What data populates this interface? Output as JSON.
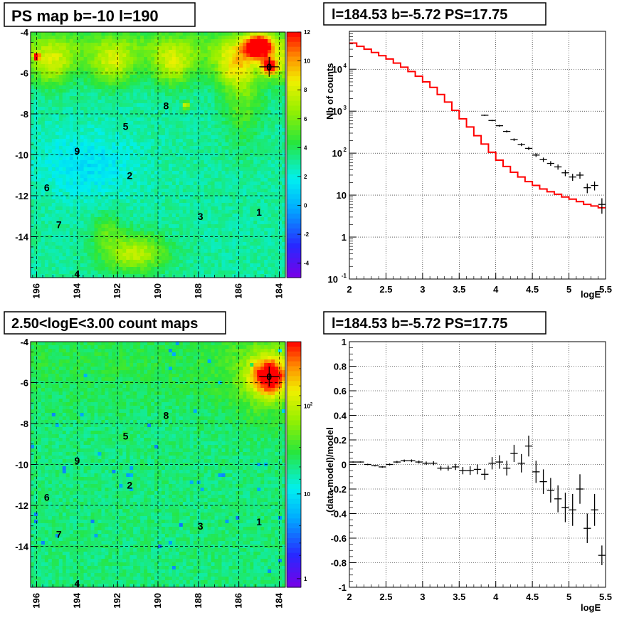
{
  "chart_data": [
    {
      "type": "heatmap",
      "title": "PS map b=-10 l=190",
      "x_ticks": [
        "196",
        "194",
        "192",
        "190",
        "188",
        "186",
        "184"
      ],
      "y_ticks": [
        "-4",
        "-6",
        "-8",
        "-10",
        "-12",
        "-14"
      ],
      "xlim": [
        196.3,
        183.7
      ],
      "ylim": [
        -16,
        -4
      ],
      "grid": true,
      "colorbar": {
        "ticks": [
          "12",
          "10",
          "8",
          "6",
          "4",
          "2",
          "0",
          "-2",
          "-4"
        ],
        "range": [
          -5,
          12
        ],
        "scale": "linear"
      },
      "sources": [
        {
          "id": "0",
          "l": 184.5,
          "b": -5.7
        },
        {
          "id": "1",
          "l": 185,
          "b": -12.8
        },
        {
          "id": "2",
          "l": 191.4,
          "b": -11
        },
        {
          "id": "3",
          "l": 187.9,
          "b": -13
        },
        {
          "id": "4",
          "l": 194,
          "b": -15.8
        },
        {
          "id": "5",
          "l": 191.6,
          "b": -8.6
        },
        {
          "id": "6",
          "l": 195.5,
          "b": -11.6
        },
        {
          "id": "7",
          "l": 194.9,
          "b": -13.4
        },
        {
          "id": "8",
          "l": 189.6,
          "b": -7.6
        },
        {
          "id": "9",
          "l": 194,
          "b": -9.8
        }
      ]
    },
    {
      "type": "line",
      "title": "l=184.53 b=-5.72 PS=17.75",
      "xlabel": "logE",
      "ylabel": "Nb of counts",
      "xlim": [
        2,
        5.5
      ],
      "ylim": [
        0.1,
        80000
      ],
      "yscale": "log",
      "x_ticks": [
        "2",
        "2.5",
        "3",
        "3.5",
        "4",
        "4.5",
        "5",
        "5.5"
      ],
      "y_ticks": [
        {
          "base": "10",
          "exp": "-1",
          "v": 0.1
        },
        {
          "base": "1",
          "exp": "",
          "v": 1
        },
        {
          "base": "10",
          "exp": "",
          "v": 10
        },
        {
          "base": "10",
          "exp": "2",
          "v": 100
        },
        {
          "base": "10",
          "exp": "3",
          "v": 1000
        },
        {
          "base": "10",
          "exp": "4",
          "v": 10000
        }
      ],
      "grid": true,
      "series": [
        {
          "kind": "model-step",
          "color": "#ff0000",
          "x": [
            2.05,
            2.15,
            2.25,
            2.35,
            2.45,
            2.55,
            2.65,
            2.75,
            2.85,
            2.95,
            3.05,
            3.15,
            3.25,
            3.35,
            3.45,
            3.55,
            3.65,
            3.75,
            3.85,
            3.95,
            4.05,
            4.15,
            4.25,
            4.35,
            4.45,
            4.55,
            4.65,
            4.75,
            4.85,
            4.95,
            5.05,
            5.15,
            5.25,
            5.35,
            5.45
          ],
          "values": [
            42000,
            35000,
            30000,
            25000,
            21000,
            17500,
            14000,
            11200,
            8800,
            6800,
            5000,
            3700,
            2500,
            1650,
            1050,
            660,
            420,
            260,
            165,
            105,
            68,
            48,
            35,
            27,
            21,
            17,
            14,
            12,
            10.5,
            9,
            8,
            7,
            6,
            5.5,
            5
          ]
        },
        {
          "kind": "data-points",
          "color": "#000000",
          "x": [
            3.85,
            3.95,
            4.05,
            4.15,
            4.25,
            4.35,
            4.45,
            4.55,
            4.65,
            4.75,
            4.85,
            4.95,
            5.05,
            5.15,
            5.25,
            5.35,
            5.45
          ],
          "values": [
            800,
            600,
            450,
            330,
            210,
            160,
            130,
            90,
            70,
            57,
            47,
            34,
            27,
            30,
            15,
            17,
            6
          ],
          "yerr_frac": [
            0.04,
            0.04,
            0.05,
            0.06,
            0.07,
            0.08,
            0.09,
            0.1,
            0.12,
            0.13,
            0.14,
            0.17,
            0.19,
            0.18,
            0.26,
            0.24,
            0.4
          ]
        }
      ]
    },
    {
      "type": "heatmap",
      "title": "2.50<logE<3.00 count maps",
      "x_ticks": [
        "196",
        "194",
        "192",
        "190",
        "188",
        "186",
        "184"
      ],
      "y_ticks": [
        "-4",
        "-6",
        "-8",
        "-10",
        "-12",
        "-14"
      ],
      "xlim": [
        196.3,
        183.7
      ],
      "ylim": [
        -16,
        -4
      ],
      "grid": true,
      "colorbar": {
        "ticks": [
          "10^2",
          "10",
          "1"
        ],
        "scale": "log"
      },
      "sources": [
        {
          "id": "0",
          "l": 184.5,
          "b": -5.7
        },
        {
          "id": "1",
          "l": 185,
          "b": -12.8
        },
        {
          "id": "2",
          "l": 191.4,
          "b": -11
        },
        {
          "id": "3",
          "l": 187.9,
          "b": -13
        },
        {
          "id": "4",
          "l": 194,
          "b": -15.8
        },
        {
          "id": "5",
          "l": 191.6,
          "b": -8.6
        },
        {
          "id": "6",
          "l": 195.5,
          "b": -11.6
        },
        {
          "id": "7",
          "l": 194.9,
          "b": -13.4
        },
        {
          "id": "8",
          "l": 189.6,
          "b": -7.6
        },
        {
          "id": "9",
          "l": 194,
          "b": -9.8
        }
      ]
    },
    {
      "type": "scatter",
      "title": "l=184.53 b=-5.72 PS=17.75",
      "xlabel": "logE",
      "ylabel": "(data-model)/model",
      "xlim": [
        2,
        5.5
      ],
      "ylim": [
        -1,
        1
      ],
      "x_ticks": [
        "2",
        "2.5",
        "3",
        "3.5",
        "4",
        "4.5",
        "5",
        "5.5"
      ],
      "y_ticks": [
        "1",
        "0.8",
        "0.6",
        "0.4",
        "0.2",
        "0",
        "-0.2",
        "-0.4",
        "-0.6",
        "-0.8",
        "-1"
      ],
      "grid": true,
      "series": [
        {
          "kind": "residuals",
          "color": "#000000",
          "x": [
            2.05,
            2.15,
            2.25,
            2.35,
            2.45,
            2.55,
            2.65,
            2.75,
            2.85,
            2.95,
            3.05,
            3.15,
            3.25,
            3.35,
            3.45,
            3.55,
            3.65,
            3.75,
            3.85,
            3.95,
            4.05,
            4.15,
            4.25,
            4.35,
            4.45,
            4.55,
            4.65,
            4.75,
            4.85,
            4.95,
            5.05,
            5.15,
            5.25,
            5.35,
            5.45
          ],
          "values": [
            0.02,
            0.02,
            0.0,
            -0.01,
            -0.02,
            0.0,
            0.02,
            0.03,
            0.03,
            0.02,
            0.01,
            0.01,
            -0.03,
            -0.03,
            -0.02,
            -0.05,
            -0.05,
            -0.04,
            -0.08,
            0.01,
            0.02,
            -0.03,
            0.09,
            0.01,
            0.15,
            -0.06,
            -0.14,
            -0.21,
            -0.28,
            -0.35,
            -0.37,
            -0.2,
            -0.52,
            -0.37,
            -0.74
          ],
          "yerr": [
            0.005,
            0.005,
            0.006,
            0.006,
            0.007,
            0.008,
            0.009,
            0.01,
            0.011,
            0.012,
            0.014,
            0.016,
            0.018,
            0.021,
            0.025,
            0.03,
            0.035,
            0.04,
            0.045,
            0.05,
            0.055,
            0.06,
            0.07,
            0.075,
            0.085,
            0.09,
            0.1,
            0.1,
            0.11,
            0.12,
            0.13,
            0.12,
            0.12,
            0.13,
            0.08
          ]
        }
      ]
    }
  ]
}
